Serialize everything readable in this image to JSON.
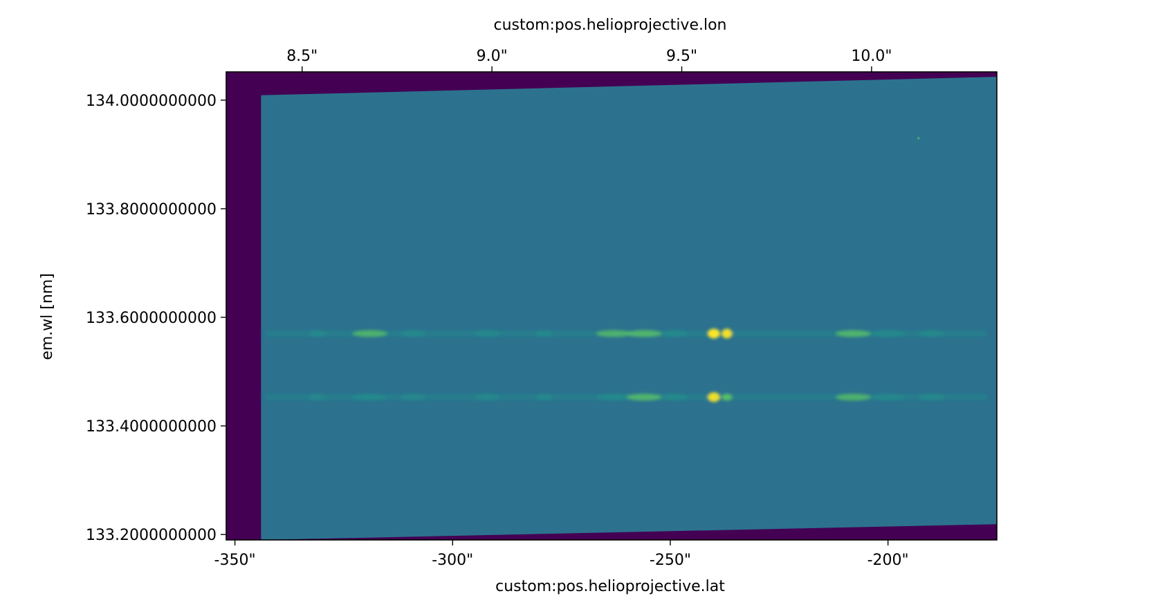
{
  "chart_data": {
    "type": "heatmap",
    "title": "",
    "colormap": "viridis",
    "colors": {
      "fill": "#440154",
      "background": "#2c728e",
      "line_mid": "#21918c",
      "line_bright": "#5ec962",
      "line_peak": "#fde725"
    },
    "x_bottom": {
      "label": "custom:pos.helioprojective.lat",
      "range": [
        -352,
        -175
      ],
      "ticks": [
        {
          "value": -350,
          "label": "-350\""
        },
        {
          "value": -300,
          "label": "-300\""
        },
        {
          "value": -250,
          "label": "-250\""
        },
        {
          "value": -200,
          "label": "-200\""
        }
      ]
    },
    "x_top": {
      "label": "custom:pos.helioprojective.lon",
      "range": [
        8.3,
        10.33
      ],
      "ticks": [
        {
          "value": 8.5,
          "label": "8.5\""
        },
        {
          "value": 9.0,
          "label": "9.0\""
        },
        {
          "value": 9.5,
          "label": "9.5\""
        },
        {
          "value": 10.0,
          "label": "10.0\""
        }
      ]
    },
    "y": {
      "label": "em.wl [nm]",
      "range": [
        133.19,
        134.052
      ],
      "ticks": [
        {
          "value": 133.2,
          "label": "133.2000000000"
        },
        {
          "value": 133.4,
          "label": "133.4000000000"
        },
        {
          "value": 133.6,
          "label": "133.6000000000"
        },
        {
          "value": 133.8,
          "label": "133.8000000000"
        },
        {
          "value": 134.0,
          "label": "134.0000000000"
        }
      ]
    },
    "data_region": {
      "x_start": -344,
      "top_edge": [
        [
          -344,
          134.009
        ],
        [
          -176,
          134.043
        ]
      ],
      "bottom_edge": [
        [
          -344,
          133.19
        ],
        [
          -176,
          133.219
        ]
      ]
    },
    "emission_lines": [
      {
        "wavelength": 133.57,
        "blobs": [
          {
            "x": -331,
            "w": 2,
            "i": 0.25
          },
          {
            "x": -319,
            "w": 4,
            "i": 0.45
          },
          {
            "x": -309,
            "w": 3,
            "i": 0.25
          },
          {
            "x": -292,
            "w": 3,
            "i": 0.35
          },
          {
            "x": -279,
            "w": 2,
            "i": 0.35
          },
          {
            "x": -263,
            "w": 4,
            "i": 0.45
          },
          {
            "x": -256,
            "w": 4,
            "i": 0.55
          },
          {
            "x": -249,
            "w": 3,
            "i": 0.4
          },
          {
            "x": -240,
            "w": 1.4,
            "i": 1.0
          },
          {
            "x": -237,
            "w": 1.2,
            "i": 0.9
          },
          {
            "x": -208,
            "w": 4,
            "i": 0.5
          },
          {
            "x": -200,
            "w": 4,
            "i": 0.35
          },
          {
            "x": -190,
            "w": 3,
            "i": 0.3
          }
        ]
      },
      {
        "wavelength": 133.453,
        "blobs": [
          {
            "x": -331,
            "w": 2,
            "i": 0.2
          },
          {
            "x": -319,
            "w": 4,
            "i": 0.4
          },
          {
            "x": -309,
            "w": 3,
            "i": 0.2
          },
          {
            "x": -292,
            "w": 3,
            "i": 0.3
          },
          {
            "x": -279,
            "w": 2,
            "i": 0.3
          },
          {
            "x": -263,
            "w": 4,
            "i": 0.4
          },
          {
            "x": -256,
            "w": 4,
            "i": 0.5
          },
          {
            "x": -249,
            "w": 3,
            "i": 0.35
          },
          {
            "x": -240,
            "w": 1.4,
            "i": 0.85
          },
          {
            "x": -237,
            "w": 1.2,
            "i": 0.75
          },
          {
            "x": -208,
            "w": 4,
            "i": 0.45
          },
          {
            "x": -200,
            "w": 4,
            "i": 0.3
          },
          {
            "x": -190,
            "w": 3,
            "i": 0.25
          }
        ]
      }
    ],
    "point_sources": [
      {
        "x": -193,
        "y": 133.93,
        "i": 0.6
      }
    ]
  }
}
